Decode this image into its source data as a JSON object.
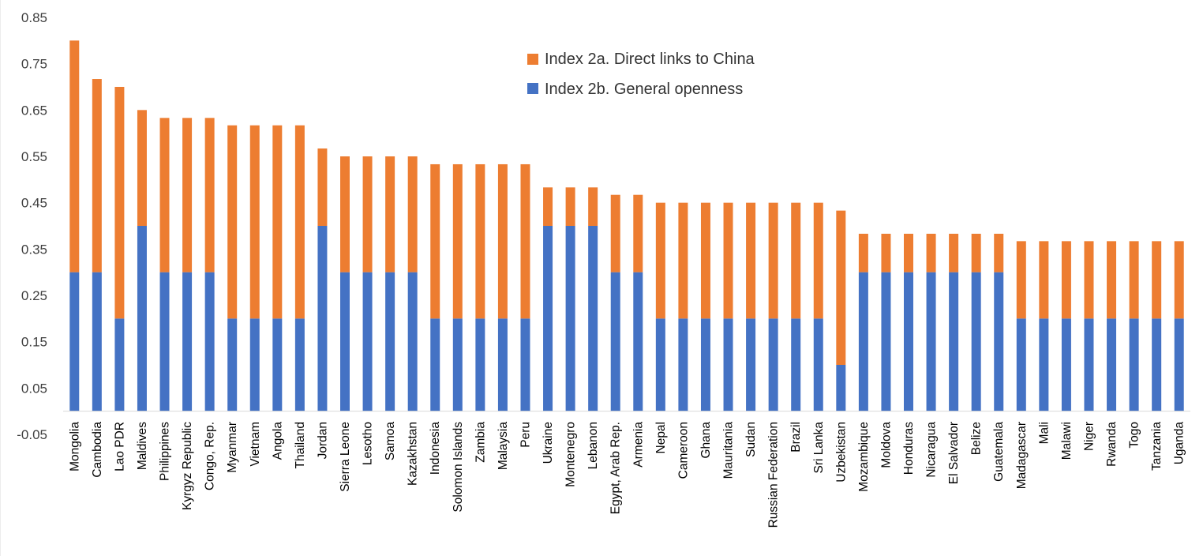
{
  "chart_data": {
    "type": "bar",
    "stacked": true,
    "title": "",
    "xlabel": "",
    "ylabel": "",
    "ylim": [
      -0.05,
      0.85
    ],
    "yticks": [
      "0.85",
      "0.75",
      "0.65",
      "0.55",
      "0.45",
      "0.35",
      "0.25",
      "0.15",
      "0.05",
      "-0.05"
    ],
    "grid": false,
    "legend_position": "top-center",
    "categories": [
      "Mongolia",
      "Cambodia",
      "Lao PDR",
      "Maldives",
      "Philippines",
      "Kyrgyz Republic",
      "Congo, Rep.",
      "Myanmar",
      "Vietnam",
      "Angola",
      "Thailand",
      "Jordan",
      "Sierra Leone",
      "Lesotho",
      "Samoa",
      "Kazakhstan",
      "Indonesia",
      "Solomon Islands",
      "Zambia",
      "Malaysia",
      "Peru",
      "Ukraine",
      "Montenegro",
      "Lebanon",
      "Egypt, Arab Rep.",
      "Armenia",
      "Nepal",
      "Cameroon",
      "Ghana",
      "Mauritania",
      "Sudan",
      "Russian Federation",
      "Brazil",
      "Sri Lanka",
      "Uzbekistan",
      "Mozambique",
      "Moldova",
      "Honduras",
      "Nicaragua",
      "El Salvador",
      "Belize",
      "Guatemala",
      "Madagascar",
      "Mali",
      "Malawi",
      "Niger",
      "Rwanda",
      "Togo",
      "Tanzania",
      "Uganda"
    ],
    "series": [
      {
        "name": "Index 2b. General openness",
        "color": "#4472C4",
        "values": [
          0.3,
          0.3,
          0.2,
          0.4,
          0.3,
          0.3,
          0.3,
          0.2,
          0.2,
          0.2,
          0.2,
          0.4,
          0.3,
          0.3,
          0.3,
          0.3,
          0.2,
          0.2,
          0.2,
          0.2,
          0.2,
          0.4,
          0.4,
          0.4,
          0.3,
          0.3,
          0.2,
          0.2,
          0.2,
          0.2,
          0.2,
          0.2,
          0.2,
          0.2,
          0.1,
          0.3,
          0.3,
          0.3,
          0.3,
          0.3,
          0.3,
          0.3,
          0.2,
          0.2,
          0.2,
          0.2,
          0.2,
          0.2,
          0.2,
          0.2
        ]
      },
      {
        "name": "Index 2a. Direct links to China",
        "color": "#ED7D31",
        "values": [
          0.5,
          0.417,
          0.5,
          0.25,
          0.333,
          0.333,
          0.333,
          0.417,
          0.417,
          0.417,
          0.417,
          0.167,
          0.25,
          0.25,
          0.25,
          0.25,
          0.333,
          0.333,
          0.333,
          0.333,
          0.333,
          0.083,
          0.083,
          0.083,
          0.167,
          0.167,
          0.25,
          0.25,
          0.25,
          0.25,
          0.25,
          0.25,
          0.25,
          0.25,
          0.333,
          0.083,
          0.083,
          0.083,
          0.083,
          0.083,
          0.083,
          0.083,
          0.167,
          0.167,
          0.167,
          0.167,
          0.167,
          0.167,
          0.167,
          0.167
        ]
      }
    ],
    "legend": [
      "Index 2a. Direct links to China",
      "Index 2b. General openness"
    ]
  }
}
